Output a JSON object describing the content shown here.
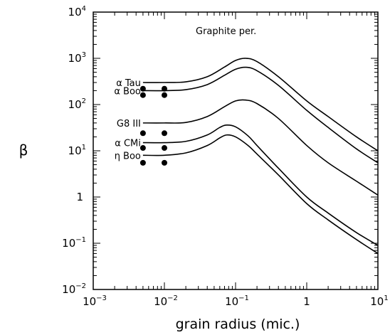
{
  "chart_data": {
    "type": "line",
    "title": "",
    "annotation": "Graphite per.",
    "xlabel": "grain radius (mic.)",
    "ylabel": "β",
    "xscale": "log",
    "yscale": "log",
    "xlim": [
      0.001,
      10
    ],
    "ylim": [
      0.01,
      10000
    ],
    "grid": false,
    "legend": "none",
    "x_ticks": [
      {
        "value": 0.001,
        "base": "10",
        "exp": "−3"
      },
      {
        "value": 0.01,
        "base": "10",
        "exp": "−2"
      },
      {
        "value": 0.1,
        "base": "10",
        "exp": "−1"
      },
      {
        "value": 1,
        "base": "1",
        "exp": ""
      },
      {
        "value": 10,
        "base": "10",
        "exp": "1"
      }
    ],
    "y_ticks": [
      {
        "value": 0.01,
        "base": "10",
        "exp": "−2"
      },
      {
        "value": 0.1,
        "base": "10",
        "exp": "−1"
      },
      {
        "value": 1,
        "base": "1",
        "exp": ""
      },
      {
        "value": 10,
        "base": "10",
        "exp": "1"
      },
      {
        "value": 100,
        "base": "10",
        "exp": "2"
      },
      {
        "value": 1000,
        "base": "10",
        "exp": "3"
      },
      {
        "value": 10000,
        "base": "10",
        "exp": "4"
      }
    ],
    "series": [
      {
        "label": "α Tau",
        "x": [
          0.005,
          0.01,
          0.02,
          0.04,
          0.07,
          0.1,
          0.14,
          0.2,
          0.4,
          1,
          2,
          5,
          10
        ],
        "y": [
          300,
          300,
          310,
          400,
          650,
          900,
          1000,
          850,
          400,
          120,
          55,
          20,
          10
        ]
      },
      {
        "label": "α Boo",
        "x": [
          0.005,
          0.01,
          0.02,
          0.04,
          0.07,
          0.1,
          0.14,
          0.2,
          0.4,
          1,
          2,
          5,
          10
        ],
        "y": [
          200,
          200,
          210,
          270,
          430,
          580,
          640,
          540,
          260,
          75,
          32,
          11,
          5.5
        ]
      },
      {
        "label": "G8 III",
        "x": [
          0.005,
          0.01,
          0.02,
          0.04,
          0.07,
          0.1,
          0.14,
          0.2,
          0.4,
          1,
          2,
          5,
          10
        ],
        "y": [
          40,
          40,
          41,
          55,
          90,
          120,
          125,
          105,
          50,
          13,
          5.5,
          2.2,
          1.1
        ]
      },
      {
        "label": "α CMi",
        "x": [
          0.005,
          0.01,
          0.02,
          0.04,
          0.06,
          0.075,
          0.1,
          0.15,
          0.2,
          0.4,
          1,
          2,
          5,
          10
        ],
        "y": [
          15,
          15,
          16,
          22,
          32,
          36,
          33,
          21,
          13,
          4.2,
          1,
          0.45,
          0.17,
          0.09
        ]
      },
      {
        "label": "η Boo",
        "x": [
          0.005,
          0.01,
          0.02,
          0.04,
          0.06,
          0.075,
          0.1,
          0.15,
          0.2,
          0.4,
          1,
          2,
          5,
          10
        ],
        "y": [
          8,
          8,
          9,
          13,
          19,
          22,
          20,
          13,
          8.5,
          3,
          0.72,
          0.32,
          0.12,
          0.06
        ]
      }
    ],
    "points": [
      {
        "x": 0.005,
        "y": 220
      },
      {
        "x": 0.01,
        "y": 220
      },
      {
        "x": 0.005,
        "y": 160
      },
      {
        "x": 0.01,
        "y": 160
      },
      {
        "x": 0.005,
        "y": 24
      },
      {
        "x": 0.01,
        "y": 24
      },
      {
        "x": 0.005,
        "y": 11.5
      },
      {
        "x": 0.01,
        "y": 11.5
      },
      {
        "x": 0.005,
        "y": 5.5
      },
      {
        "x": 0.01,
        "y": 5.5
      }
    ]
  }
}
